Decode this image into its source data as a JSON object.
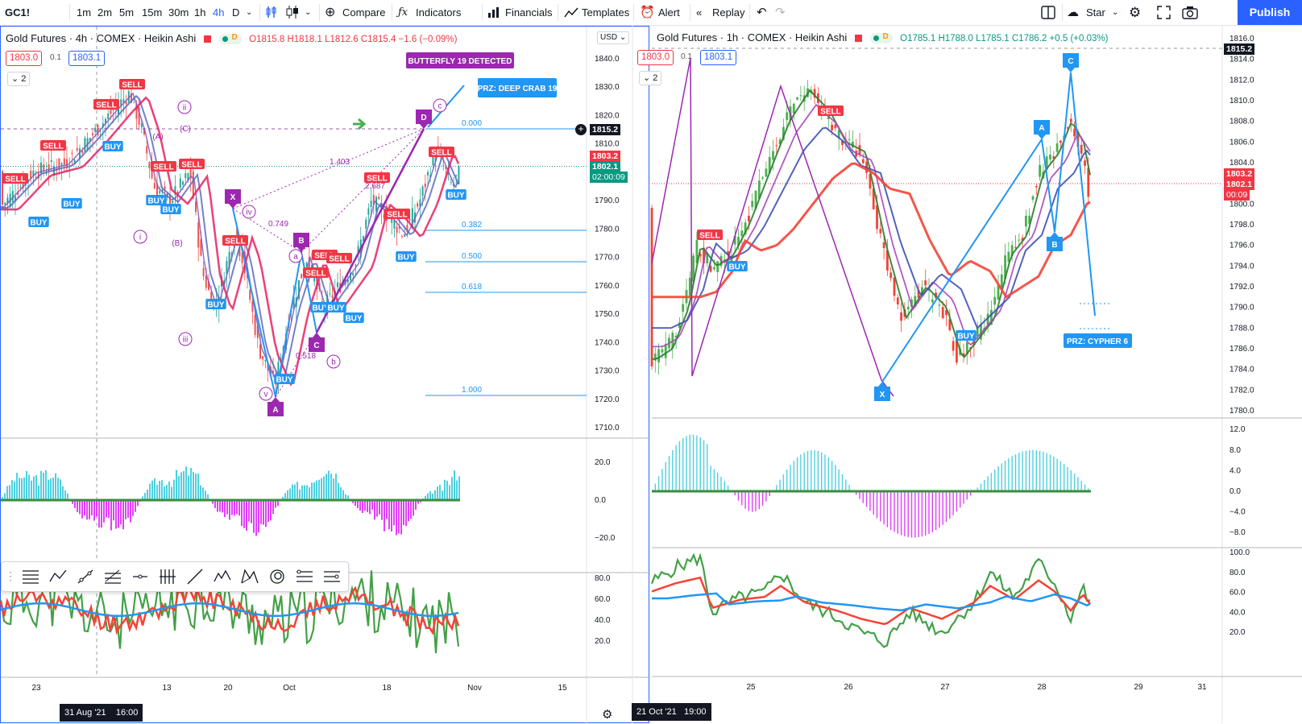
{
  "toolbar": {
    "symbol": "GC1!",
    "intervals": [
      "1m",
      "2m",
      "5m",
      "15m",
      "30m",
      "1h",
      "4h",
      "D"
    ],
    "active_interval": "4h",
    "compare": "Compare",
    "indicators": "Indicators",
    "financials": "Financials",
    "templates": "Templates",
    "alert": "Alert",
    "replay": "Replay",
    "star": "Star",
    "publish": "Publish"
  },
  "left": {
    "title": "Gold Futures · 4h · COMEX · Heikin Ashi",
    "ohlc": "O1815.8 H1818.1 L1812.6 C1815.4 −1.6 (−0.09%)",
    "bid": "1803.0",
    "spread": "0.1",
    "ask": "1803.1",
    "collapse": "2",
    "currency": "USD",
    "price_axis": [
      "1840.0",
      "1830.0",
      "1820.0",
      "1810.0",
      "1800.0",
      "1790.0",
      "1780.0",
      "1770.0",
      "1760.0",
      "1750.0",
      "1740.0",
      "1730.0",
      "1720.0",
      "1710.0"
    ],
    "price_tags": {
      "crosshair": "1815.2",
      "last": "1803.2",
      "bid": "1802.1",
      "countdown": "02:00:09"
    },
    "fib_levels": [
      "0.000",
      "0.382",
      "0.500",
      "0.618",
      "1.000"
    ],
    "ratios": [
      "1.403",
      "2.687",
      "0.749",
      "0.518"
    ],
    "points": [
      "X",
      "A",
      "B",
      "C",
      "D"
    ],
    "wave_labels": [
      "ii",
      "(C)",
      "(A)",
      "i",
      "(B)",
      "iii",
      "iv",
      "v",
      "a",
      "b",
      "c"
    ],
    "banner_butterfly": "BUTTERFLY 19 DETECTED",
    "banner_prz": "PRZ: DEEP CRAB 19",
    "osc1_axis": [
      "20.0",
      "0.0",
      "−20.0"
    ],
    "osc2_axis": [
      "80.0",
      "60.0",
      "40.0",
      "20.0"
    ],
    "time_axis": [
      "23",
      "13",
      "20",
      "Oct",
      "18",
      "Nov",
      "15"
    ],
    "time_highlight_date": "31 Aug '21",
    "time_highlight_time": "16:00"
  },
  "right": {
    "title": "Gold Futures · 1h · COMEX · Heikin Ashi",
    "ohlc": "O1785.1 H1788.0 L1785.1 C1786.2 +0.5 (+0.03%)",
    "bid": "1803.0",
    "spread": "0.1",
    "ask": "1803.1",
    "collapse": "2",
    "price_axis": [
      "1816.0",
      "1814.0",
      "1812.0",
      "1810.0",
      "1808.0",
      "1806.0",
      "1804.0",
      "1802.0",
      "1800.0",
      "1798.0",
      "1796.0",
      "1794.0",
      "1792.0",
      "1790.0",
      "1788.0",
      "1786.0",
      "1784.0",
      "1782.0",
      "1780.0"
    ],
    "price_tags": {
      "crosshair": "1815.2",
      "last": "1803.2",
      "bid": "1802.1",
      "countdown": "00:09"
    },
    "points": [
      "X",
      "A",
      "B",
      "C"
    ],
    "banner_prz": "PRZ: CYPHER 6",
    "osc1_axis": [
      "12.0",
      "8.0",
      "4.0",
      "0.0",
      "−4.0",
      "−8.0"
    ],
    "osc2_axis": [
      "100.0",
      "80.0",
      "60.0",
      "40.0",
      "20.0"
    ],
    "time_axis": [
      "25",
      "26",
      "27",
      "28",
      "29",
      "31"
    ],
    "time_highlight_date": "21 Oct '21",
    "time_highlight_time": "19:00"
  },
  "signals": {
    "buy": "BUY",
    "sell": "SELL"
  },
  "colors": {
    "accent": "#2962ff",
    "up": "#089981",
    "down": "#f23645",
    "pattern": "#9c27b0",
    "pattern_blue": "#2196f3"
  }
}
